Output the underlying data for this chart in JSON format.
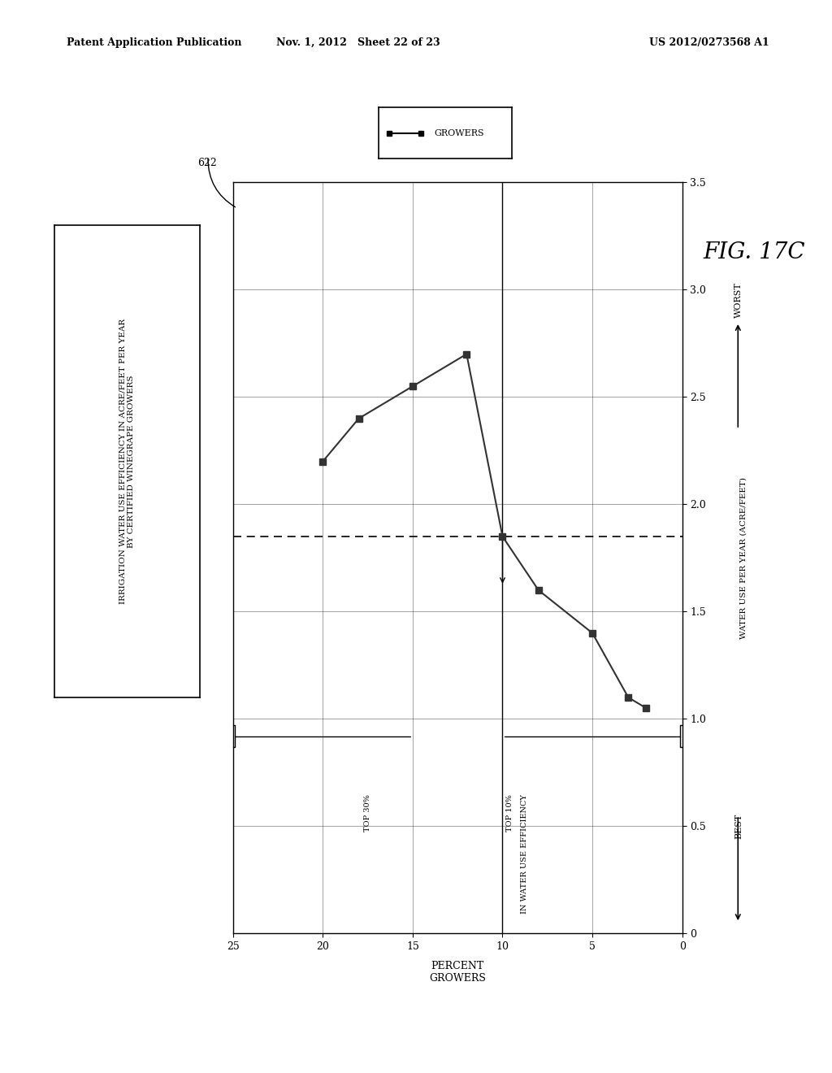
{
  "header_left": "Patent Application Publication",
  "header_middle": "Nov. 1, 2012   Sheet 22 of 23",
  "header_right": "US 2012/0273568 A1",
  "fig_label": "FIG. 17C",
  "label_622": "622",
  "chart_title_box": "IRRIGATION WATER USE EFFICIENCY IN ACRE/FEET PER YEAR\nBY CERTIFIED WINEGRAPE GROWERS",
  "x_label": "PERCENT\nGROWERS",
  "y_right_label": "WATER USE PER YEAR (ACRE/FEET)",
  "y_right_worst": "WORST",
  "y_right_best": "BEST",
  "legend_label": "GROWERS",
  "x_data": [
    20,
    18,
    15,
    12,
    10,
    8,
    5,
    3,
    2
  ],
  "y_data": [
    2.2,
    2.4,
    2.55,
    2.7,
    1.85,
    1.6,
    1.4,
    1.1,
    1.05
  ],
  "x_lim": [
    0,
    25
  ],
  "y_lim": [
    0,
    3.5
  ],
  "x_ticks": [
    0,
    5,
    10,
    15,
    20,
    25
  ],
  "y_ticks": [
    0,
    0.5,
    1.0,
    1.5,
    2.0,
    2.5,
    3.0,
    3.5
  ],
  "dashed_line_y": 1.85,
  "annotation_top30": "TOP 30%",
  "annotation_top10_line1": "TOP 10%",
  "annotation_top10_line2": "IN WATER USE EFFICIENCY",
  "background_color": "#ffffff",
  "line_color": "#333333",
  "marker_color": "#333333"
}
